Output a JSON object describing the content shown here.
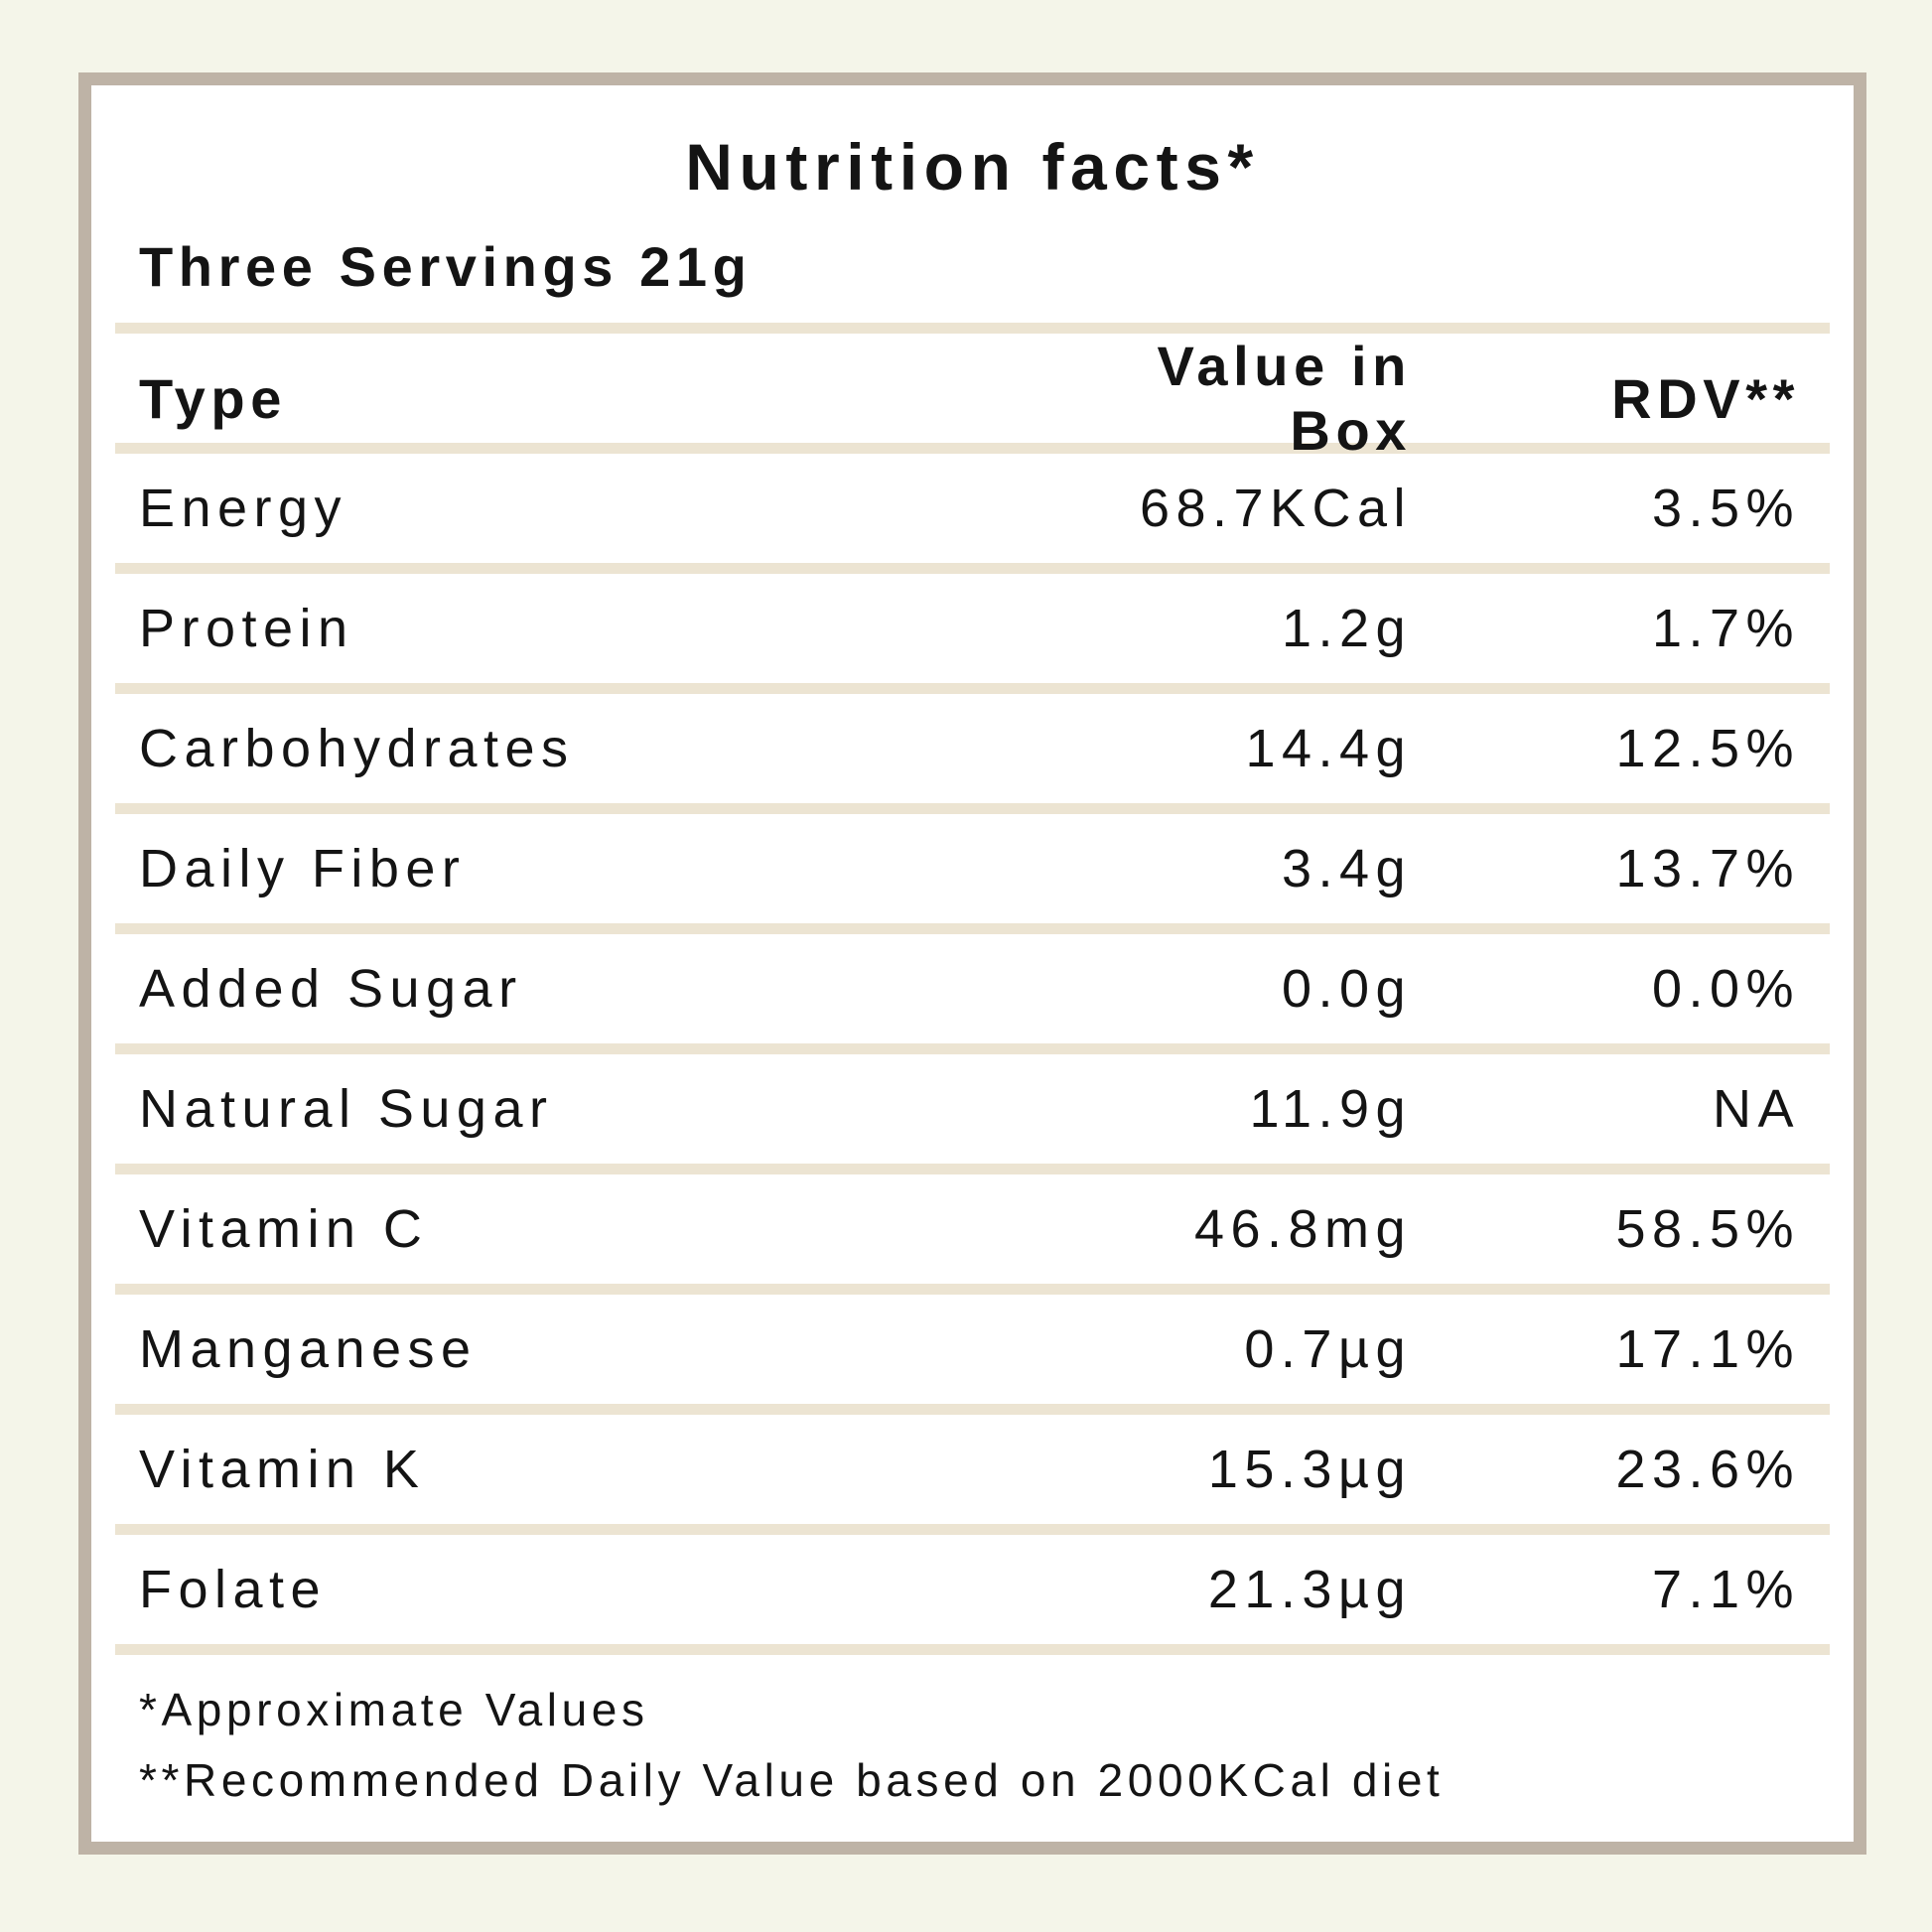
{
  "title": "Nutrition facts*",
  "servings": "Three Servings 21g",
  "table": {
    "headers": {
      "type": "Type",
      "value": "Value in Box",
      "rdv": "RDV**"
    },
    "rows": [
      {
        "label": "Energy",
        "value": "68.7KCal",
        "rdv": "3.5%"
      },
      {
        "label": "Protein",
        "value": "1.2g",
        "rdv": "1.7%"
      },
      {
        "label": "Carbohydrates",
        "value": "14.4g",
        "rdv": "12.5%"
      },
      {
        "label": "Daily Fiber",
        "value": "3.4g",
        "rdv": "13.7%"
      },
      {
        "label": "Added Sugar",
        "value": "0.0g",
        "rdv": "0.0%"
      },
      {
        "label": "Natural Sugar",
        "value": "11.9g",
        "rdv": "NA"
      },
      {
        "label": "Vitamin C",
        "value": "46.8mg",
        "rdv": "58.5%"
      },
      {
        "label": "Manganese",
        "value": "0.7µg",
        "rdv": "17.1%"
      },
      {
        "label": "Vitamin K",
        "value": "15.3µg",
        "rdv": "23.6%"
      },
      {
        "label": "Folate",
        "value": "21.3µg",
        "rdv": "7.1%"
      }
    ]
  },
  "footnotes": [
    "*Approximate Values",
    "**Recommended Daily Value based on 2000KCal diet"
  ],
  "colors": {
    "page_bg": "#f4f5e9",
    "card_bg": "#ffffff",
    "card_border": "#beb3a6",
    "divider": "#ece4d2",
    "text": "#141414"
  }
}
